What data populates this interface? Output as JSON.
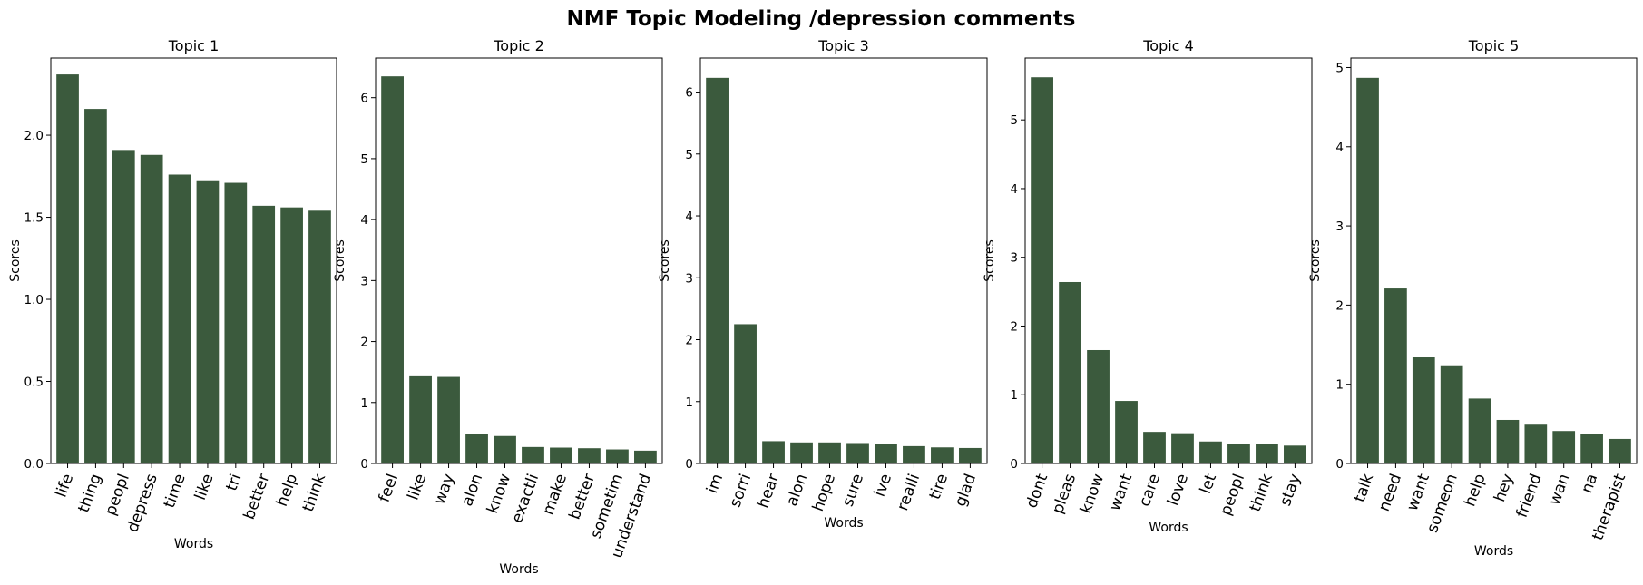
{
  "figure": {
    "title": "NMF Topic Modeling /depression comments",
    "bar_color": "#3b5a3d"
  },
  "chart_data": [
    {
      "type": "bar",
      "title": "Topic 1",
      "xlabel": "Words",
      "ylabel": "Scores",
      "categories": [
        "life",
        "thing",
        "peopl",
        "depress",
        "time",
        "like",
        "tri",
        "better",
        "help",
        "think"
      ],
      "values": [
        2.37,
        2.16,
        1.91,
        1.88,
        1.76,
        1.72,
        1.71,
        1.57,
        1.56,
        1.54
      ],
      "ylim": [
        0,
        2.47
      ],
      "yticks": [
        0.0,
        0.5,
        1.0,
        1.5,
        2.0
      ],
      "ytick_labels": [
        "0.0",
        "0.5",
        "1.0",
        "1.5",
        "2.0"
      ]
    },
    {
      "type": "bar",
      "title": "Topic 2",
      "xlabel": "Words",
      "ylabel": "Scores",
      "categories": [
        "feel",
        "like",
        "way",
        "alon",
        "know",
        "exactli",
        "make",
        "better",
        "sometim",
        "understand"
      ],
      "values": [
        6.35,
        1.43,
        1.42,
        0.48,
        0.45,
        0.27,
        0.26,
        0.25,
        0.23,
        0.21
      ],
      "ylim": [
        0,
        6.65
      ],
      "yticks": [
        0,
        1,
        2,
        3,
        4,
        5,
        6
      ],
      "ytick_labels": [
        "0",
        "1",
        "2",
        "3",
        "4",
        "5",
        "6"
      ]
    },
    {
      "type": "bar",
      "title": "Topic 3",
      "xlabel": "Words",
      "ylabel": "Scores",
      "categories": [
        "im",
        "sorri",
        "hear",
        "alon",
        "hope",
        "sure",
        "ive",
        "realli",
        "tire",
        "glad"
      ],
      "values": [
        6.23,
        2.25,
        0.36,
        0.34,
        0.34,
        0.33,
        0.31,
        0.28,
        0.26,
        0.25
      ],
      "ylim": [
        0,
        6.55
      ],
      "yticks": [
        0,
        1,
        2,
        3,
        4,
        5,
        6
      ],
      "ytick_labels": [
        "0",
        "1",
        "2",
        "3",
        "4",
        "5",
        "6"
      ]
    },
    {
      "type": "bar",
      "title": "Topic 4",
      "xlabel": "Words",
      "ylabel": "Scores",
      "categories": [
        "dont",
        "pleas",
        "know",
        "want",
        "care",
        "love",
        "let",
        "peopl",
        "think",
        "stay"
      ],
      "values": [
        5.62,
        2.64,
        1.65,
        0.91,
        0.46,
        0.44,
        0.32,
        0.29,
        0.28,
        0.26
      ],
      "ylim": [
        0,
        5.9
      ],
      "yticks": [
        0,
        1,
        2,
        3,
        4,
        5
      ],
      "ytick_labels": [
        "0",
        "1",
        "2",
        "3",
        "4",
        "5"
      ]
    },
    {
      "type": "bar",
      "title": "Topic 5",
      "xlabel": "Words",
      "ylabel": "Scores",
      "categories": [
        "talk",
        "need",
        "want",
        "someon",
        "help",
        "hey",
        "friend",
        "wan",
        "na",
        "therapist"
      ],
      "values": [
        4.87,
        2.21,
        1.34,
        1.24,
        0.82,
        0.55,
        0.49,
        0.41,
        0.37,
        0.31
      ],
      "ylim": [
        0,
        5.12
      ],
      "yticks": [
        0,
        1,
        2,
        3,
        4,
        5
      ],
      "ytick_labels": [
        "0",
        "1",
        "2",
        "3",
        "4",
        "5"
      ]
    }
  ]
}
